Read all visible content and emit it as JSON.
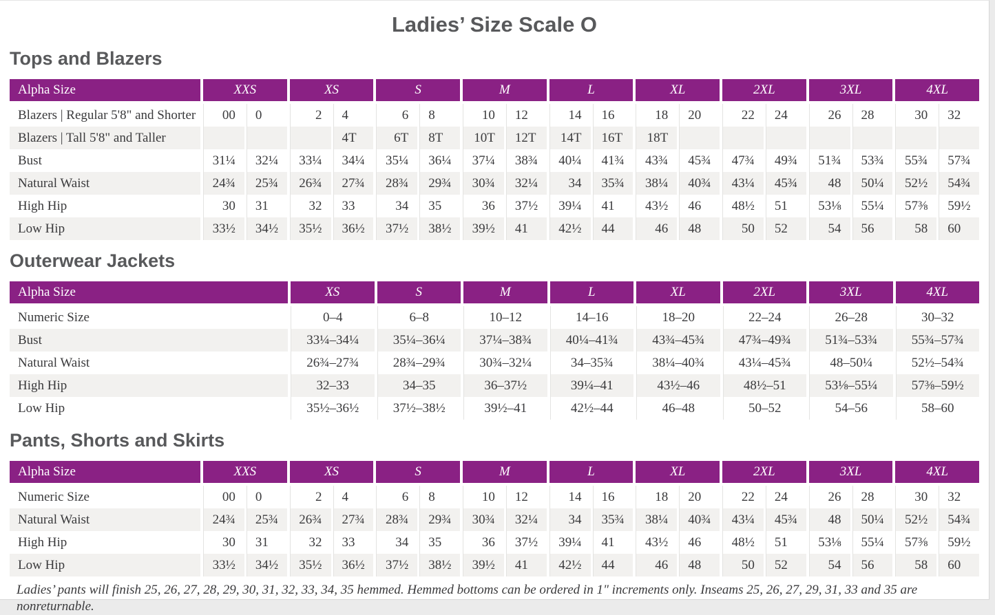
{
  "page": {
    "title": "Ladies’ Size Scale O"
  },
  "colors": {
    "header_bg": "#8A2184",
    "header_text": "#FFFFFF",
    "row_alt_bg": "#F2F1EF",
    "body_text": "#3A3A3C",
    "heading_text": "#58595B"
  },
  "sections": [
    {
      "heading": "Tops and Blazers",
      "table": {
        "type": "paired",
        "header_label": "Alpha Size",
        "size_groups": [
          "XXS",
          "XS",
          "S",
          "M",
          "L",
          "XL",
          "2XL",
          "3XL",
          "4XL"
        ],
        "rows": [
          {
            "label": "Blazers | Regular 5'8\" and Shorter",
            "values": [
              "00",
              "0",
              "2",
              "4",
              "6",
              "8",
              "10",
              "12",
              "14",
              "16",
              "18",
              "20",
              "22",
              "24",
              "26",
              "28",
              "30",
              "32"
            ]
          },
          {
            "label": "Blazers | Tall 5'8\" and Taller",
            "values": [
              "",
              "",
              "",
              "4T",
              "6T",
              "8T",
              "10T",
              "12T",
              "14T",
              "16T",
              "18T",
              "",
              "",
              "",
              "",
              "",
              "",
              ""
            ]
          },
          {
            "label": "Bust",
            "values": [
              "31¼",
              "32¼",
              "33¼",
              "34¼",
              "35¼",
              "36¼",
              "37¼",
              "38¾",
              "40¼",
              "41¾",
              "43¾",
              "45¾",
              "47¾",
              "49¾",
              "51¾",
              "53¾",
              "55¾",
              "57¾"
            ]
          },
          {
            "label": "Natural Waist",
            "values": [
              "24¾",
              "25¾",
              "26¾",
              "27¾",
              "28¾",
              "29¾",
              "30¾",
              "32¼",
              "34",
              "35¾",
              "38¼",
              "40¾",
              "43¼",
              "45¾",
              "48",
              "50¼",
              "52½",
              "54¾"
            ]
          },
          {
            "label": "High Hip",
            "values": [
              "30",
              "31",
              "32",
              "33",
              "34",
              "35",
              "36",
              "37½",
              "39¼",
              "41",
              "43½",
              "46",
              "48½",
              "51",
              "53⅛",
              "55¼",
              "57⅜",
              "59½"
            ]
          },
          {
            "label": "Low Hip",
            "values": [
              "33½",
              "34½",
              "35½",
              "36½",
              "37½",
              "38½",
              "39½",
              "41",
              "42½",
              "44",
              "46",
              "48",
              "50",
              "52",
              "54",
              "56",
              "58",
              "60"
            ]
          }
        ]
      }
    },
    {
      "heading": "Outerwear Jackets",
      "table": {
        "type": "single",
        "header_label": "Alpha Size",
        "size_groups": [
          "XS",
          "S",
          "M",
          "L",
          "XL",
          "2XL",
          "3XL",
          "4XL"
        ],
        "rows": [
          {
            "label": "Numeric Size",
            "values": [
              "0–4",
              "6–8",
              "10–12",
              "14–16",
              "18–20",
              "22–24",
              "26–28",
              "30–32"
            ]
          },
          {
            "label": "Bust",
            "values": [
              "33¼–34¼",
              "35¼–36¼",
              "37¼–38¾",
              "40¼–41¾",
              "43¾–45¾",
              "47¾–49¾",
              "51¾–53¾",
              "55¾–57¾"
            ]
          },
          {
            "label": "Natural Waist",
            "values": [
              "26¾–27¾",
              "28¾–29¾",
              "30¾–32¼",
              "34–35¾",
              "38¼–40¾",
              "43¼–45¾",
              "48–50¼",
              "52½–54¾"
            ]
          },
          {
            "label": "High Hip",
            "values": [
              "32–33",
              "34–35",
              "36–37½",
              "39¼–41",
              "43½–46",
              "48½–51",
              "53⅛–55¼",
              "57⅜–59½"
            ]
          },
          {
            "label": "Low Hip",
            "values": [
              "35½–36½",
              "37½–38½",
              "39½–41",
              "42½–44",
              "46–48",
              "50–52",
              "54–56",
              "58–60"
            ]
          }
        ]
      }
    },
    {
      "heading": "Pants, Shorts and Skirts",
      "table": {
        "type": "paired",
        "header_label": "Alpha Size",
        "size_groups": [
          "XXS",
          "XS",
          "S",
          "M",
          "L",
          "XL",
          "2XL",
          "3XL",
          "4XL"
        ],
        "rows": [
          {
            "label": "Numeric Size",
            "values": [
              "00",
              "0",
              "2",
              "4",
              "6",
              "8",
              "10",
              "12",
              "14",
              "16",
              "18",
              "20",
              "22",
              "24",
              "26",
              "28",
              "30",
              "32"
            ]
          },
          {
            "label": "Natural Waist",
            "values": [
              "24¾",
              "25¾",
              "26¾",
              "27¾",
              "28¾",
              "29¾",
              "30¾",
              "32¼",
              "34",
              "35¾",
              "38¼",
              "40¾",
              "43¼",
              "45¾",
              "48",
              "50¼",
              "52½",
              "54¾"
            ]
          },
          {
            "label": "High Hip",
            "values": [
              "30",
              "31",
              "32",
              "33",
              "34",
              "35",
              "36",
              "37½",
              "39¼",
              "41",
              "43½",
              "46",
              "48½",
              "51",
              "53⅛",
              "55¼",
              "57⅜",
              "59½"
            ]
          },
          {
            "label": "Low Hip",
            "values": [
              "33½",
              "34½",
              "35½",
              "36½",
              "37½",
              "38½",
              "39½",
              "41",
              "42½",
              "44",
              "46",
              "48",
              "50",
              "52",
              "54",
              "56",
              "58",
              "60"
            ]
          }
        ]
      }
    }
  ],
  "footnote": "Ladies’ pants will finish 25, 26, 27, 28, 29, 30, 31, 32, 33, 34, 35 hemmed. Hemmed bottoms can be ordered in 1\" increments only. Inseams 25, 26, 27, 29, 31, 33 and 35 are nonreturnable."
}
